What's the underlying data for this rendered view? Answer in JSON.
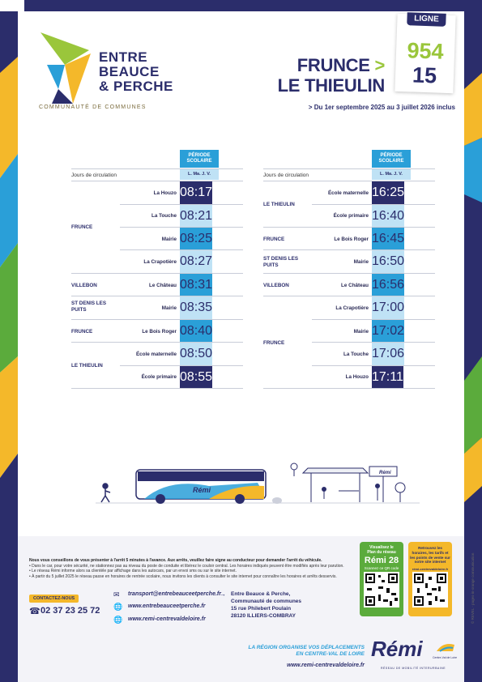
{
  "logo": {
    "line1": "ENTRE",
    "line2": "BEAUCE",
    "line3": "& PERCHE",
    "subtitle": "COMMUNAUTÉ DE COMMUNES"
  },
  "header": {
    "title_line1": "FRUNCE",
    "title_arrow": ">",
    "title_line2": "LE THIEULIN",
    "period_arrow": ">",
    "period": "Du 1er septembre 2025 au 3 juillet 2026 inclus"
  },
  "ligne": {
    "tab": "LIGNE",
    "number1": "954",
    "number2": "15"
  },
  "table_left": {
    "header": "PÉRIODE SCOLAIRE",
    "days_label": "Jours de circulation",
    "days_value": "L. Ma. J. V.",
    "communes": [
      "FRUNCE",
      "VILLEBON",
      "ST DENIS LES PUITS",
      "FRUNCE",
      "LE THIEULIN"
    ],
    "rows": [
      {
        "stop": "La Houzo",
        "time": "08:17"
      },
      {
        "stop": "La Touche",
        "time": "08:21"
      },
      {
        "stop": "Mairie",
        "time": "08:25"
      },
      {
        "stop": "La Crapotière",
        "time": "08:27"
      },
      {
        "stop": "Le Château",
        "time": "08:31"
      },
      {
        "stop": "Mairie",
        "time": "08:35"
      },
      {
        "stop": "Le Bois Roger",
        "time": "08:40"
      },
      {
        "stop": "École maternelle",
        "time": "08:50"
      },
      {
        "stop": "École primaire",
        "time": "08:55"
      }
    ]
  },
  "table_right": {
    "header": "PÉRIODE SCOLAIRE",
    "days_label": "Jours de circulation",
    "days_value": "L. Ma. J. V.",
    "communes": [
      "LE THIEULIN",
      "FRUNCE",
      "ST DENIS LES PUITS",
      "VILLEBON",
      "FRUNCE"
    ],
    "rows": [
      {
        "stop": "École maternelle",
        "time": "16:25"
      },
      {
        "stop": "École primaire",
        "time": "16:40"
      },
      {
        "stop": "Le Bois Roger",
        "time": "16:45"
      },
      {
        "stop": "Mairie",
        "time": "16:50"
      },
      {
        "stop": "Le Château",
        "time": "16:56"
      },
      {
        "stop": "La Crapotière",
        "time": "17:00"
      },
      {
        "stop": "Mairie",
        "time": "17:02"
      },
      {
        "stop": "La Touche",
        "time": "17:06"
      },
      {
        "stop": "La Houzo",
        "time": "17:11"
      }
    ]
  },
  "illustration": {
    "bus_brand": "Rémi",
    "stop_sign": "Rémi"
  },
  "notes": {
    "lead": "Nous vous conseillons de vous présenter à l'arrêt 5 minutes à l'avance. Aux arrêts, veuillez faire signe au conducteur pour demander l'arrêt du véhicule.",
    "items": [
      "• Dans le car, pour votre sécurité, ne stationnez pas au niveau du poste de conduite et libérez le couloir central. Les horaires indiqués peuvent être modifiés après leur parution.",
      "• Le réseau Rémi informe alors sa clientèle par affichage dans les autocars, par un envoi sms ou sur le site internet.",
      "• À partir du 5 juillet 2025 le réseau passe en horaires de rentrée scolaire, nous invitons les clients à consulter le site internet pour connaître les horaires et arrêts desservis."
    ]
  },
  "contact": {
    "badge": "CONTACTEZ-NOUS",
    "phone": "02 37 23 25 72",
    "email": "transport@entrebeauceetperche.fr",
    "website": "www.entrebeauceetperche.fr",
    "remi_site": "www.remi-centrevaldeloire.fr",
    "address_arrow": "→",
    "address_lines": [
      "Entre Beauce & Perche,",
      "Communauté de communes",
      "15 rue Philebert Poulain",
      "28120 ILLIERS-COMBRAY"
    ]
  },
  "cards": {
    "green_lines": [
      "Visualisez le",
      "Plan du réseau"
    ],
    "green_big": "Rémi 28",
    "green_small": "Scannez ce QR code",
    "yellow_lines": [
      "Retrouvez les",
      "horaires, les tarifs et",
      "les points de vente sur",
      "notre site internet"
    ],
    "yellow_url": "rémi-centrevaldeloire.fr"
  },
  "footer": {
    "slogan_line1": "LA RÉGION ORGANISE VOS DÉPLACEMENTS",
    "slogan_line2": "EN CENTRE-VAL DE LOIRE",
    "url": "www.remi-centrevaldeloire.fr",
    "logo": "Rémi",
    "region_label": "Centre-Val de Loire",
    "network_label": "RÉSEAU DE MOBILITÉ INTERURBAINE",
    "credit": "© REVEL · pages-in-orange communication"
  },
  "colors": {
    "navy": "#2b2d6b",
    "accent_green": "#9ac63b",
    "time_blue": "#2a9fd8",
    "time_light": "#bfe2f5",
    "yellow": "#f4b82a"
  }
}
